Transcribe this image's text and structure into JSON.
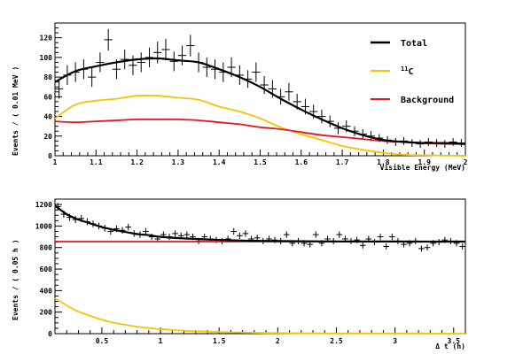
{
  "colors": {
    "total": "#000000",
    "c11": "#f5c400",
    "background": "#e8141c",
    "data": "#000000",
    "axis": "#000000"
  },
  "chart_data": [
    {
      "type": "line",
      "id": "energy",
      "xlabel": "Visible Energy (MeV)",
      "ylabel": "Events / ( 0.01 MeV )",
      "xlim": [
        1,
        2
      ],
      "ylim": [
        0,
        135
      ],
      "xticks": [
        1,
        1.1,
        1.2,
        1.3,
        1.4,
        1.5,
        1.6,
        1.7,
        1.8,
        1.9,
        2
      ],
      "xtick_labels": [
        "1",
        "1.1",
        "1.2",
        "1.3",
        "1.4",
        "1.5",
        "1.6",
        "1.7",
        "1.8",
        "1.9",
        "2"
      ],
      "yticks": [
        0,
        20,
        40,
        60,
        80,
        100,
        120
      ],
      "ytick_labels": [
        "0",
        "20",
        "40",
        "60",
        "80",
        "100",
        "120"
      ],
      "legend": {
        "position": "top-right",
        "entries": [
          {
            "label": "Total",
            "series": "total"
          },
          {
            "label": "11C",
            "sup": "11",
            "base": "C",
            "series": "c11"
          },
          {
            "label": "Background",
            "series": "background"
          }
        ]
      },
      "series": [
        {
          "name": "Total",
          "key": "total",
          "x": [
            1.0,
            1.05,
            1.1,
            1.15,
            1.2,
            1.25,
            1.3,
            1.35,
            1.4,
            1.45,
            1.5,
            1.55,
            1.6,
            1.65,
            1.7,
            1.75,
            1.8,
            1.85,
            1.9,
            1.95,
            2.0
          ],
          "y": [
            75,
            86,
            91,
            95,
            98,
            99,
            97,
            95,
            88,
            80,
            70,
            58,
            47,
            37,
            28,
            21,
            16,
            14,
            13,
            13,
            12
          ]
        },
        {
          "name": "11C",
          "key": "c11",
          "x": [
            1.0,
            1.05,
            1.1,
            1.15,
            1.2,
            1.25,
            1.3,
            1.35,
            1.4,
            1.45,
            1.5,
            1.55,
            1.6,
            1.65,
            1.7,
            1.75,
            1.8,
            1.85,
            1.9,
            1.95,
            2.0
          ],
          "y": [
            38,
            52,
            56,
            58,
            61,
            61,
            59,
            57,
            50,
            45,
            38,
            29,
            22,
            16,
            10,
            6,
            3,
            1,
            0.5,
            0.2,
            0
          ],
          "note": null
        },
        {
          "name": "Background",
          "key": "background",
          "x": [
            1.0,
            1.05,
            1.1,
            1.15,
            1.2,
            1.25,
            1.3,
            1.35,
            1.4,
            1.45,
            1.5,
            1.55,
            1.6,
            1.65,
            1.7,
            1.75,
            1.8,
            1.85,
            1.9,
            1.95,
            2.0
          ],
          "y": [
            35,
            34,
            35,
            36,
            37,
            37,
            37,
            36,
            34,
            32,
            29,
            27,
            24,
            21,
            19,
            17,
            15,
            14,
            13,
            12,
            12
          ]
        }
      ],
      "points": {
        "x": [
          1.01,
          1.03,
          1.05,
          1.07,
          1.09,
          1.11,
          1.13,
          1.15,
          1.17,
          1.19,
          1.21,
          1.23,
          1.25,
          1.27,
          1.29,
          1.31,
          1.33,
          1.35,
          1.37,
          1.39,
          1.41,
          1.43,
          1.45,
          1.47,
          1.49,
          1.51,
          1.53,
          1.55,
          1.57,
          1.59,
          1.61,
          1.63,
          1.65,
          1.67,
          1.69,
          1.71,
          1.73,
          1.75,
          1.77,
          1.79,
          1.81,
          1.83,
          1.85,
          1.87,
          1.89,
          1.91,
          1.93,
          1.95,
          1.97,
          1.99
        ],
        "y": [
          68,
          82,
          85,
          88,
          80,
          95,
          118,
          88,
          98,
          92,
          95,
          100,
          105,
          108,
          96,
          102,
          112,
          95,
          90,
          88,
          85,
          90,
          82,
          78,
          85,
          72,
          68,
          60,
          65,
          55,
          50,
          45,
          40,
          35,
          28,
          30,
          25,
          22,
          20,
          18,
          16,
          14,
          15,
          13,
          12,
          14,
          13,
          12,
          14,
          13
        ],
        "err": [
          10,
          10,
          10,
          10,
          10,
          10,
          11,
          10,
          10,
          10,
          10,
          10,
          11,
          11,
          10,
          10,
          11,
          10,
          10,
          10,
          10,
          10,
          10,
          9,
          10,
          9,
          9,
          8,
          9,
          8,
          8,
          7,
          7,
          6,
          6,
          6,
          5,
          5,
          5,
          4,
          4,
          4,
          4,
          4,
          4,
          4,
          4,
          4,
          4,
          4
        ]
      }
    },
    {
      "type": "line",
      "id": "time",
      "xlabel": "Δ t (h)",
      "ylabel": "Events / ( 0.05 h )",
      "xlim": [
        0.1,
        3.6
      ],
      "ylim": [
        0,
        1250
      ],
      "xticks": [
        0.5,
        1,
        1.5,
        2,
        2.5,
        3,
        3.5
      ],
      "xtick_labels": [
        "0.5",
        "1",
        "1.5",
        "2",
        "2.5",
        "3",
        "3.5"
      ],
      "yticks": [
        0,
        200,
        400,
        600,
        800,
        1000,
        1200
      ],
      "ytick_labels": [
        "0",
        "200",
        "400",
        "600",
        "800",
        "1000",
        "1200"
      ],
      "series": [
        {
          "name": "Total",
          "key": "total",
          "x": [
            0.1,
            0.2,
            0.3,
            0.4,
            0.5,
            0.6,
            0.7,
            0.8,
            0.9,
            1.0,
            1.2,
            1.4,
            1.6,
            1.8,
            2.0,
            2.5,
            3.0,
            3.6
          ],
          "y": [
            1190,
            1110,
            1060,
            1025,
            990,
            965,
            945,
            925,
            915,
            900,
            885,
            875,
            868,
            863,
            860,
            857,
            856,
            855
          ]
        },
        {
          "name": "11C",
          "key": "c11",
          "x": [
            0.1,
            0.2,
            0.3,
            0.4,
            0.5,
            0.6,
            0.7,
            0.8,
            0.9,
            1.0,
            1.2,
            1.4,
            1.6,
            1.8,
            2.0,
            2.5,
            3.0,
            3.6
          ],
          "y": [
            330,
            262,
            205,
            165,
            130,
            102,
            82,
            65,
            52,
            42,
            27,
            18,
            12,
            8,
            5,
            2,
            1,
            0
          ]
        },
        {
          "name": "Background",
          "key": "background",
          "x": [
            0.1,
            3.6
          ],
          "y": [
            855,
            855
          ]
        }
      ],
      "points": {
        "x": [
          0.125,
          0.175,
          0.225,
          0.275,
          0.325,
          0.375,
          0.425,
          0.475,
          0.525,
          0.575,
          0.625,
          0.675,
          0.725,
          0.775,
          0.825,
          0.875,
          0.925,
          0.975,
          1.025,
          1.075,
          1.125,
          1.175,
          1.225,
          1.275,
          1.325,
          1.375,
          1.425,
          1.475,
          1.525,
          1.575,
          1.625,
          1.675,
          1.725,
          1.775,
          1.825,
          1.875,
          1.925,
          1.975,
          2.025,
          2.075,
          2.125,
          2.175,
          2.225,
          2.275,
          2.325,
          2.375,
          2.425,
          2.475,
          2.525,
          2.575,
          2.625,
          2.675,
          2.725,
          2.775,
          2.825,
          2.875,
          2.925,
          2.975,
          3.025,
          3.075,
          3.125,
          3.175,
          3.225,
          3.275,
          3.325,
          3.375,
          3.425,
          3.475,
          3.525,
          3.575
        ],
        "y": [
          1180,
          1110,
          1080,
          1060,
          1070,
          1040,
          1020,
          1000,
          980,
          950,
          975,
          960,
          990,
          930,
          920,
          950,
          900,
          880,
          920,
          900,
          930,
          910,
          920,
          900,
          860,
          900,
          880,
          870,
          860,
          880,
          950,
          910,
          930,
          880,
          890,
          860,
          880,
          870,
          860,
          920,
          840,
          860,
          840,
          830,
          920,
          840,
          880,
          860,
          920,
          880,
          860,
          870,
          820,
          880,
          850,
          900,
          810,
          900,
          860,
          830,
          840,
          860,
          790,
          800,
          840,
          850,
          870,
          860,
          840,
          810
        ],
        "err": [
          35,
          33,
          33,
          33,
          33,
          32,
          32,
          32,
          31,
          31,
          31,
          31,
          31,
          30,
          30,
          31,
          30,
          30,
          30,
          30,
          30,
          30,
          30,
          30,
          29,
          30,
          30,
          29,
          29,
          30,
          31,
          30,
          30,
          30,
          30,
          29,
          30,
          29,
          29,
          30,
          29,
          29,
          29,
          29,
          30,
          29,
          30,
          29,
          30,
          30,
          29,
          29,
          29,
          30,
          29,
          30,
          28,
          30,
          29,
          29,
          29,
          29,
          28,
          28,
          29,
          29,
          29,
          29,
          29,
          28
        ]
      }
    }
  ]
}
